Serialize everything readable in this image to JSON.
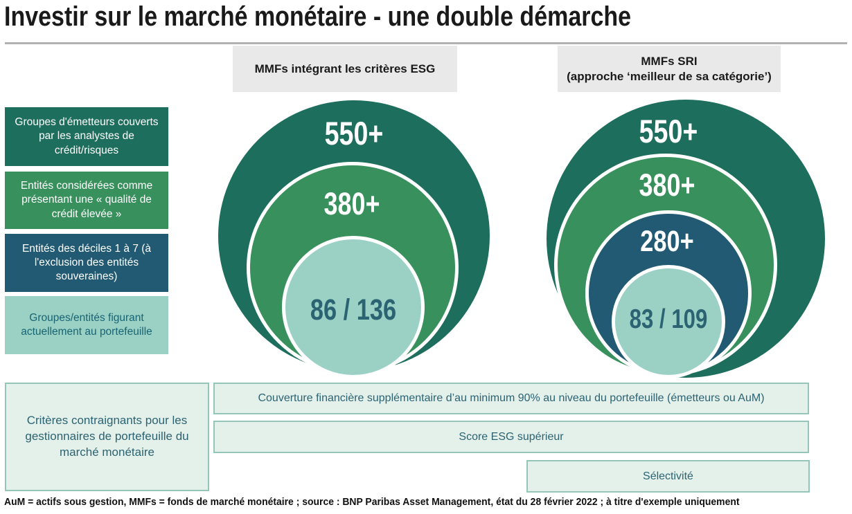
{
  "palette": {
    "dark_green": "#1d6e5c",
    "green": "#38905c",
    "dark_blue": "#215a72",
    "light_teal": "#9bd1c5",
    "header_gray": "#e9e9e9",
    "mint_bg": "#e4f0ea",
    "mint_border": "#95c5b8",
    "teal_text": "#2b6372",
    "white": "#ffffff",
    "title_rule_gray": "#b1b1b1"
  },
  "title": "Investir sur le marché monétaire - une double démarche",
  "headers": {
    "left": "MMFs intégrant les critères ESG",
    "right_line1": "MMFs SRI",
    "right_line2": "(approche ‘meilleur de sa catégorie’)"
  },
  "row_labels": [
    {
      "text": "Groupes d'émetteurs couverts par les analystes de crédit/risques",
      "bg": "#1d6e5c",
      "text_color": "#ffffff"
    },
    {
      "text": "Entités considérées comme présentant une « qualité de crédit élevée »",
      "bg": "#38905c",
      "text_color": "#ffffff"
    },
    {
      "text": "Entités des déciles 1 à 7 (à l'exclusion des entités souveraines)",
      "bg": "#215a72",
      "text_color": "#ffffff"
    },
    {
      "text": "Groupes/entités figurant actuellement au portefeuille",
      "bg": "#9bd1c5",
      "text_color": "#176473"
    }
  ],
  "venn_left": {
    "values": [
      "550+",
      "380+",
      "86 / 136"
    ]
  },
  "venn_right": {
    "values": [
      "550+",
      "380+",
      "280+",
      "83 / 109"
    ]
  },
  "constraint_box": "Critères contraignants pour les gestionnaires de portefeuille du marché monétaire",
  "bars": [
    "Couverture financière supplémentaire d’au minimum 90% au niveau du portefeuille (émetteurs ou AuM)",
    "Score ESG supérieur",
    "Sélectivité"
  ],
  "footnote": "AuM = actifs sous gestion, MMFs = fonds de marché monétaire ; source : BNP Paribas Asset Management, état du 28 février 2022 ; à titre d'exemple uniquement"
}
